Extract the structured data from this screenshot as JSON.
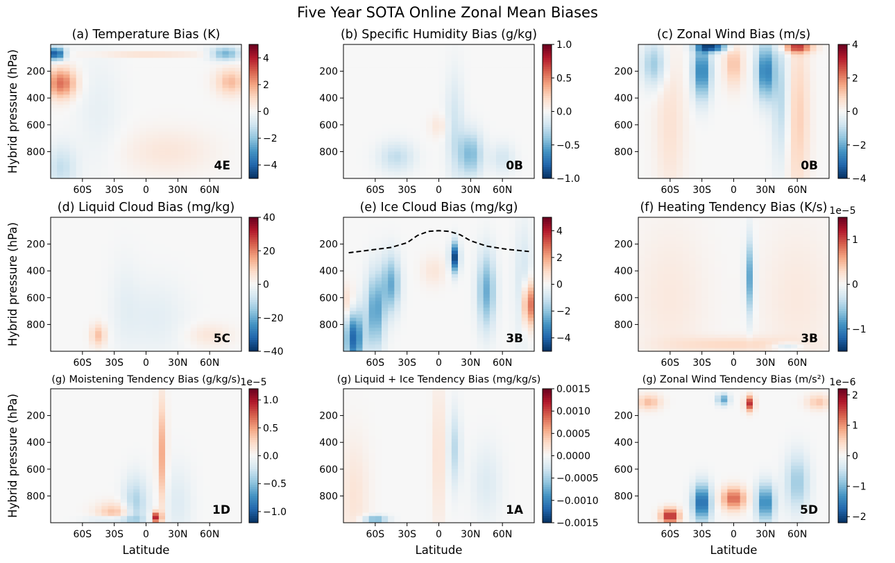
{
  "figure_title": "Five Year SOTA Online Zonal Mean Biases",
  "shared": {
    "ylabel": "Hybrid pressure (hPa)",
    "xlabel": "Latitude",
    "x_ticks": [
      "60S",
      "30S",
      "0",
      "30N",
      "60N"
    ],
    "x_tick_values": [
      -60,
      -30,
      0,
      30,
      60
    ],
    "xlim": [
      -90,
      90
    ],
    "y_ticks": [
      "200",
      "400",
      "600",
      "800"
    ],
    "y_tick_values": [
      200,
      400,
      600,
      800
    ],
    "ylim": [
      0,
      1000
    ],
    "colormap": "RdBu_r",
    "colormap_stops": [
      "#053061",
      "#2166ac",
      "#4393c3",
      "#92c5de",
      "#d1e5f0",
      "#f7f7f7",
      "#fddbc7",
      "#f4a582",
      "#d6604d",
      "#b2182b",
      "#67001f"
    ]
  },
  "chart_data": [
    {
      "type": "heatmap",
      "title": "(a) Temperature Bias (K)",
      "tag": "4E",
      "vmin": -5,
      "vmax": 5,
      "cbar_ticks": [
        "−4",
        "−2",
        "0",
        "2",
        "4"
      ],
      "cbar_tick_values": [
        -4,
        -2,
        0,
        2,
        4
      ],
      "cbar_exponent": "",
      "features": [
        {
          "lat": -85,
          "p": 70,
          "slat": 6,
          "sp": 35,
          "v": -4.5
        },
        {
          "lat": 75,
          "p": 70,
          "slat": 10,
          "sp": 35,
          "v": -2.5
        },
        {
          "lat": -80,
          "p": 290,
          "slat": 10,
          "sp": 80,
          "v": 2.8
        },
        {
          "lat": 80,
          "p": 280,
          "slat": 10,
          "sp": 70,
          "v": 1.6
        },
        {
          "lat": 20,
          "p": 800,
          "slat": 30,
          "sp": 120,
          "v": 0.6
        },
        {
          "lat": -80,
          "p": 920,
          "slat": 10,
          "sp": 120,
          "v": -1.2
        },
        {
          "lat": 0,
          "p": 75,
          "slat": 40,
          "sp": 10,
          "v": 1.4
        },
        {
          "lat": -45,
          "p": 500,
          "slat": 15,
          "sp": 300,
          "v": -0.4
        }
      ]
    },
    {
      "type": "heatmap",
      "title": "(b) Specific Humidity Bias (g/kg)",
      "tag": "0B",
      "vmin": -1,
      "vmax": 1,
      "cbar_ticks": [
        "−1.0",
        "−0.5",
        "0.0",
        "0.5",
        "1.0"
      ],
      "cbar_tick_values": [
        -1.0,
        -0.5,
        0.0,
        0.5,
        1.0
      ],
      "cbar_exponent": "",
      "features": [
        {
          "lat": 30,
          "p": 820,
          "slat": 8,
          "sp": 120,
          "v": -0.45
        },
        {
          "lat": 15,
          "p": 620,
          "slat": 6,
          "sp": 280,
          "v": -0.2
        },
        {
          "lat": -40,
          "p": 840,
          "slat": 12,
          "sp": 80,
          "v": -0.25
        },
        {
          "lat": 0,
          "p": 610,
          "slat": 6,
          "sp": 60,
          "v": 0.12
        },
        {
          "lat": 60,
          "p": 850,
          "slat": 8,
          "sp": 80,
          "v": -0.18
        }
      ]
    },
    {
      "type": "heatmap",
      "title": "(c) Zonal Wind Bias (m/s)",
      "tag": "0B",
      "vmin": -4,
      "vmax": 4,
      "cbar_ticks": [
        "−4",
        "−2",
        "0",
        "2",
        "4"
      ],
      "cbar_tick_values": [
        -4,
        -2,
        0,
        2,
        4
      ],
      "cbar_exponent": "",
      "features": [
        {
          "lat": -30,
          "p": 200,
          "slat": 6,
          "sp": 150,
          "v": -2.8
        },
        {
          "lat": 30,
          "p": 200,
          "slat": 6,
          "sp": 150,
          "v": -2.8
        },
        {
          "lat": 60,
          "p": 550,
          "slat": 8,
          "sp": 450,
          "v": 1.0
        },
        {
          "lat": 0,
          "p": 150,
          "slat": 6,
          "sp": 120,
          "v": 1.2
        },
        {
          "lat": -75,
          "p": 150,
          "slat": 8,
          "sp": 120,
          "v": -1.5
        },
        {
          "lat": 45,
          "p": 400,
          "slat": 6,
          "sp": 350,
          "v": -1.2
        },
        {
          "lat": 60,
          "p": 20,
          "slat": 10,
          "sp": 30,
          "v": 2.5
        },
        {
          "lat": -20,
          "p": 20,
          "slat": 10,
          "sp": 25,
          "v": -3.5
        },
        {
          "lat": -60,
          "p": 600,
          "slat": 10,
          "sp": 400,
          "v": 0.6
        }
      ]
    },
    {
      "type": "heatmap",
      "title": "(d) Liquid Cloud Bias (mg/kg)",
      "tag": "5C",
      "vmin": -40,
      "vmax": 40,
      "cbar_ticks": [
        "−40",
        "−20",
        "0",
        "20",
        "40"
      ],
      "cbar_tick_values": [
        -40,
        -20,
        0,
        20,
        40
      ],
      "cbar_exponent": "",
      "features": [
        {
          "lat": -45,
          "p": 880,
          "slat": 5,
          "sp": 60,
          "v": 12
        },
        {
          "lat": 60,
          "p": 880,
          "slat": 15,
          "sp": 60,
          "v": 5
        },
        {
          "lat": 10,
          "p": 750,
          "slat": 20,
          "sp": 200,
          "v": -4
        },
        {
          "lat": -20,
          "p": 650,
          "slat": 10,
          "sp": 250,
          "v": -3
        }
      ]
    },
    {
      "type": "heatmap",
      "title": "(e) Ice Cloud Bias (mg/kg)",
      "tag": "3B",
      "vmin": -5,
      "vmax": 5,
      "cbar_ticks": [
        "−4",
        "−2",
        "0",
        "2",
        "4"
      ],
      "cbar_tick_values": [
        -4,
        -2,
        0,
        2,
        4
      ],
      "cbar_exponent": "",
      "tropopause": {
        "lat": [
          -85,
          -65,
          -45,
          -30,
          -20,
          -10,
          0,
          10,
          20,
          30,
          45,
          65,
          85
        ],
        "p": [
          265,
          245,
          225,
          190,
          135,
          105,
          100,
          105,
          130,
          175,
          215,
          240,
          255
        ]
      },
      "features": [
        {
          "lat": -80,
          "p": 900,
          "slat": 6,
          "sp": 150,
          "v": -4
        },
        {
          "lat": -60,
          "p": 700,
          "slat": 6,
          "sp": 200,
          "v": -2.8
        },
        {
          "lat": -45,
          "p": 500,
          "slat": 6,
          "sp": 150,
          "v": -2.5
        },
        {
          "lat": 15,
          "p": 300,
          "slat": 3,
          "sp": 80,
          "v": -4.5
        },
        {
          "lat": 45,
          "p": 550,
          "slat": 6,
          "sp": 200,
          "v": -2.5
        },
        {
          "lat": 85,
          "p": 650,
          "slat": 4,
          "sp": 120,
          "v": 3.5
        },
        {
          "lat": -85,
          "p": 650,
          "slat": 4,
          "sp": 100,
          "v": 1.2
        },
        {
          "lat": -5,
          "p": 400,
          "slat": 8,
          "sp": 80,
          "v": 0.6
        },
        {
          "lat": 80,
          "p": 500,
          "slat": 6,
          "sp": 300,
          "v": -1
        }
      ]
    },
    {
      "type": "heatmap",
      "title": "(f) Heating Tendency Bias (K/s)",
      "tag": "3B",
      "vmin": -1.5,
      "vmax": 1.5,
      "cbar_ticks": [
        "−1",
        "0",
        "1"
      ],
      "cbar_tick_values": [
        -1,
        0,
        1
      ],
      "cbar_exponent": "1e−5",
      "features": [
        {
          "lat": 15,
          "p": 450,
          "slat": 3,
          "sp": 200,
          "v": -0.8
        },
        {
          "lat": -60,
          "p": 600,
          "slat": 25,
          "sp": 400,
          "v": 0.15
        },
        {
          "lat": 60,
          "p": 600,
          "slat": 25,
          "sp": 400,
          "v": 0.15
        },
        {
          "lat": 0,
          "p": 950,
          "slat": 40,
          "sp": 40,
          "v": 0.3
        },
        {
          "lat": 50,
          "p": 965,
          "slat": 10,
          "sp": 20,
          "v": -0.4
        }
      ]
    },
    {
      "type": "heatmap",
      "title": "(g) Moistening Tendency Bias (g/kg/s)",
      "tag": "1D",
      "vmin": -1.2,
      "vmax": 1.2,
      "cbar_ticks": [
        "−1.0",
        "−0.5",
        "0.0",
        "0.5",
        "1.0"
      ],
      "cbar_tick_values": [
        -1.0,
        -0.5,
        0.0,
        0.5,
        1.0
      ],
      "cbar_exponent": "1e−5",
      "features": [
        {
          "lat": 15,
          "p": 500,
          "slat": 3,
          "sp": 300,
          "v": 0.45
        },
        {
          "lat": 10,
          "p": 960,
          "slat": 3,
          "sp": 30,
          "v": 1.0
        },
        {
          "lat": -30,
          "p": 940,
          "slat": 12,
          "sp": 60,
          "v": 0.4
        },
        {
          "lat": -10,
          "p": 870,
          "slat": 8,
          "sp": 150,
          "v": -0.4
        },
        {
          "lat": -30,
          "p": 975,
          "slat": 15,
          "sp": 20,
          "v": -0.5
        },
        {
          "lat": 30,
          "p": 850,
          "slat": 10,
          "sp": 200,
          "v": -0.15
        }
      ]
    },
    {
      "type": "heatmap",
      "title": "(g) Liquid + Ice Tendency Bias (mg/kg/s)",
      "tag": "1A",
      "vmin": -0.0015,
      "vmax": 0.0015,
      "cbar_ticks": [
        "−0.0015",
        "−0.0010",
        "−0.0005",
        "0.0000",
        "0.0005",
        "0.0010",
        "0.0015"
      ],
      "cbar_tick_values": [
        -0.0015,
        -0.001,
        -0.0005,
        0,
        0.0005,
        0.001,
        0.0015
      ],
      "cbar_exponent": "",
      "features": [
        {
          "lat": 15,
          "p": 450,
          "slat": 4,
          "sp": 200,
          "v": -0.0004
        },
        {
          "lat": 0,
          "p": 500,
          "slat": 4,
          "sp": 400,
          "v": 0.00025
        },
        {
          "lat": -60,
          "p": 975,
          "slat": 8,
          "sp": 20,
          "v": -0.0008
        },
        {
          "lat": 45,
          "p": 700,
          "slat": 10,
          "sp": 200,
          "v": -0.0002
        },
        {
          "lat": -80,
          "p": 800,
          "slat": 10,
          "sp": 300,
          "v": 0.0002
        }
      ]
    },
    {
      "type": "heatmap",
      "title": "(g) Zonal Wind Tendency Bias (m/s²)",
      "tag": "5D",
      "vmin": -2.2,
      "vmax": 2.2,
      "cbar_ticks": [
        "−2",
        "−1",
        "0",
        "1",
        "2"
      ],
      "cbar_tick_values": [
        -2,
        -1,
        0,
        1,
        2
      ],
      "cbar_exponent": "1e−6",
      "features": [
        {
          "lat": -30,
          "p": 850,
          "slat": 6,
          "sp": 100,
          "v": -1.8
        },
        {
          "lat": 0,
          "p": 820,
          "slat": 8,
          "sp": 60,
          "v": 1.3
        },
        {
          "lat": 30,
          "p": 850,
          "slat": 6,
          "sp": 100,
          "v": -1.5
        },
        {
          "lat": 15,
          "p": 110,
          "slat": 3,
          "sp": 40,
          "v": 1.6
        },
        {
          "lat": -10,
          "p": 80,
          "slat": 4,
          "sp": 30,
          "v": -1.2
        },
        {
          "lat": 60,
          "p": 700,
          "slat": 8,
          "sp": 150,
          "v": -0.8
        },
        {
          "lat": -60,
          "p": 950,
          "slat": 6,
          "sp": 40,
          "v": 1.8
        },
        {
          "lat": -80,
          "p": 100,
          "slat": 8,
          "sp": 40,
          "v": 0.7
        },
        {
          "lat": 80,
          "p": 100,
          "slat": 8,
          "sp": 40,
          "v": 0.6
        }
      ]
    }
  ]
}
